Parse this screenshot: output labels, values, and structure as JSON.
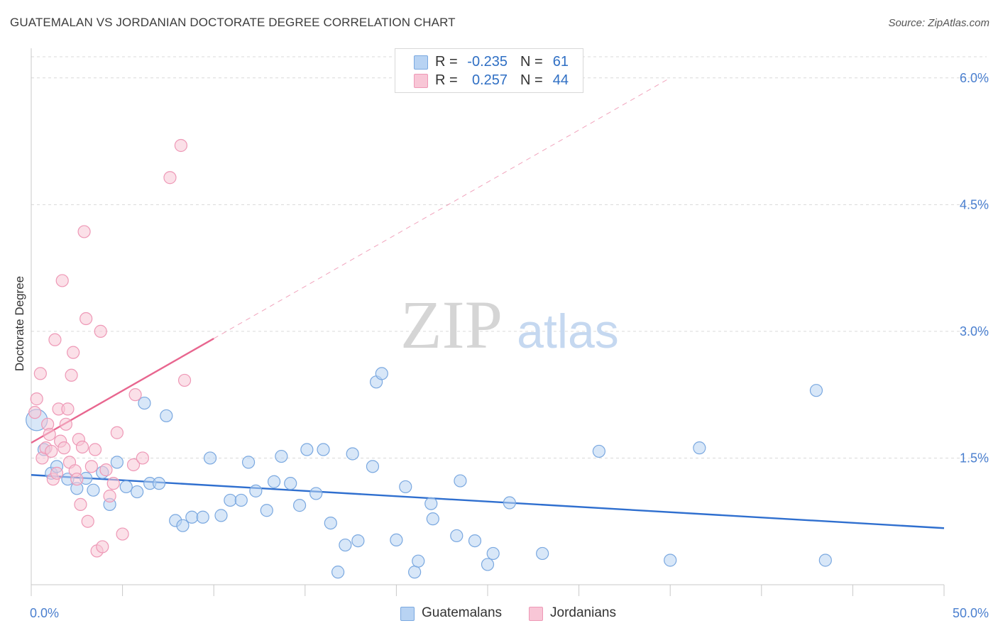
{
  "title": "GUATEMALAN VS JORDANIAN DOCTORATE DEGREE CORRELATION CHART",
  "source": "Source: ZipAtlas.com",
  "watermark": {
    "zip": "ZIP",
    "atlas": "atlas"
  },
  "colors": {
    "blue_fill": "#b8d3f3",
    "blue_stroke": "#7aa8e0",
    "blue_line": "#2f6fcf",
    "pink_fill": "#f8c6d6",
    "pink_stroke": "#ee98b6",
    "pink_line": "#e8668f",
    "axis_text": "#4a7fcf",
    "grid": "#d9d9d9"
  },
  "legend_top": {
    "rows": [
      {
        "r_label": "R =",
        "r_value": "-0.235",
        "n_label": "N =",
        "n_value": "61",
        "series": "blue"
      },
      {
        "r_label": "R =",
        "r_value": "0.257",
        "n_label": "N =",
        "n_value": "44",
        "series": "pink"
      }
    ]
  },
  "legend_bottom": [
    {
      "label": "Guatemalans",
      "series": "blue"
    },
    {
      "label": "Jordanians",
      "series": "pink"
    }
  ],
  "chart_data": {
    "type": "scatter",
    "title": "GUATEMALAN VS JORDANIAN DOCTORATE DEGREE CORRELATION CHART",
    "xlabel": "",
    "ylabel": "Doctorate Degree",
    "xlim": [
      0,
      50
    ],
    "ylim": [
      0,
      6.25
    ],
    "x_tick_labels": [
      {
        "value": 0,
        "label": "0.0%"
      },
      {
        "value": 50,
        "label": "50.0%"
      }
    ],
    "y_tick_labels": [
      {
        "value": 1.5,
        "label": "1.5%"
      },
      {
        "value": 3.0,
        "label": "3.0%"
      },
      {
        "value": 4.5,
        "label": "4.5%"
      },
      {
        "value": 6.0,
        "label": "6.0%"
      }
    ],
    "x_minor_ticks": [
      0,
      5,
      10,
      15,
      20,
      25,
      30,
      35,
      40,
      45,
      50
    ],
    "series": [
      {
        "name": "Guatemalans",
        "color": "blue",
        "trend": {
          "x0": 0,
          "y0": 1.3,
          "x1": 50,
          "y1": 0.67,
          "solid_until": 50
        },
        "points": [
          [
            0.3,
            1.95
          ],
          [
            0.7,
            1.6
          ],
          [
            1.1,
            1.32
          ],
          [
            1.4,
            1.4
          ],
          [
            2.0,
            1.25
          ],
          [
            2.5,
            1.14
          ],
          [
            3.0,
            1.26
          ],
          [
            3.4,
            1.12
          ],
          [
            3.9,
            1.33
          ],
          [
            4.3,
            0.95
          ],
          [
            4.7,
            1.45
          ],
          [
            5.2,
            1.16
          ],
          [
            5.8,
            1.1
          ],
          [
            6.2,
            2.15
          ],
          [
            6.5,
            1.2
          ],
          [
            7.0,
            1.2
          ],
          [
            7.4,
            2.0
          ],
          [
            7.9,
            0.76
          ],
          [
            8.3,
            0.7
          ],
          [
            8.8,
            0.8
          ],
          [
            9.4,
            0.8
          ],
          [
            9.8,
            1.5
          ],
          [
            10.4,
            0.82
          ],
          [
            10.9,
            1.0
          ],
          [
            11.5,
            1.0
          ],
          [
            11.9,
            1.45
          ],
          [
            12.3,
            1.11
          ],
          [
            12.9,
            0.88
          ],
          [
            13.3,
            1.22
          ],
          [
            13.7,
            1.52
          ],
          [
            14.2,
            1.2
          ],
          [
            14.7,
            0.94
          ],
          [
            15.1,
            1.6
          ],
          [
            15.6,
            1.08
          ],
          [
            16.0,
            1.6
          ],
          [
            16.4,
            0.73
          ],
          [
            16.8,
            0.15
          ],
          [
            17.2,
            0.47
          ],
          [
            17.6,
            1.55
          ],
          [
            17.9,
            0.52
          ],
          [
            18.7,
            1.4
          ],
          [
            18.9,
            2.4
          ],
          [
            19.2,
            2.5
          ],
          [
            20.0,
            0.53
          ],
          [
            20.5,
            1.16
          ],
          [
            21.0,
            0.15
          ],
          [
            21.2,
            0.28
          ],
          [
            21.9,
            0.96
          ],
          [
            22.0,
            0.78
          ],
          [
            23.3,
            0.58
          ],
          [
            23.5,
            1.23
          ],
          [
            24.3,
            0.52
          ],
          [
            25.0,
            0.24
          ],
          [
            25.3,
            0.37
          ],
          [
            26.2,
            0.97
          ],
          [
            28.0,
            0.37
          ],
          [
            31.1,
            1.58
          ],
          [
            35.0,
            0.29
          ],
          [
            36.6,
            1.62
          ],
          [
            43.0,
            2.3
          ],
          [
            43.5,
            0.29
          ]
        ]
      },
      {
        "name": "Jordanians",
        "color": "pink",
        "trend": {
          "x0": 0,
          "y0": 1.68,
          "x1": 35,
          "y1": 6.0,
          "solid_until": 10
        },
        "points": [
          [
            0.2,
            2.04
          ],
          [
            0.3,
            2.2
          ],
          [
            0.5,
            2.5
          ],
          [
            0.6,
            1.5
          ],
          [
            0.8,
            1.62
          ],
          [
            0.9,
            1.9
          ],
          [
            1.0,
            1.78
          ],
          [
            1.1,
            1.58
          ],
          [
            1.2,
            1.25
          ],
          [
            1.3,
            2.9
          ],
          [
            1.4,
            1.32
          ],
          [
            1.5,
            2.08
          ],
          [
            1.6,
            1.7
          ],
          [
            1.7,
            3.6
          ],
          [
            1.8,
            1.62
          ],
          [
            1.9,
            1.9
          ],
          [
            2.0,
            2.08
          ],
          [
            2.1,
            1.45
          ],
          [
            2.2,
            2.48
          ],
          [
            2.3,
            2.75
          ],
          [
            2.4,
            1.35
          ],
          [
            2.5,
            1.25
          ],
          [
            2.6,
            1.72
          ],
          [
            2.7,
            0.95
          ],
          [
            2.8,
            1.63
          ],
          [
            2.9,
            4.18
          ],
          [
            3.0,
            3.15
          ],
          [
            3.1,
            0.75
          ],
          [
            3.3,
            1.4
          ],
          [
            3.5,
            1.6
          ],
          [
            3.6,
            0.4
          ],
          [
            3.8,
            3.0
          ],
          [
            3.9,
            0.45
          ],
          [
            4.1,
            1.36
          ],
          [
            4.3,
            1.05
          ],
          [
            4.5,
            1.2
          ],
          [
            4.7,
            1.8
          ],
          [
            5.0,
            0.6
          ],
          [
            5.6,
            1.42
          ],
          [
            5.7,
            2.25
          ],
          [
            6.1,
            1.5
          ],
          [
            7.6,
            4.82
          ],
          [
            8.2,
            5.2
          ],
          [
            8.4,
            2.42
          ]
        ]
      }
    ]
  }
}
